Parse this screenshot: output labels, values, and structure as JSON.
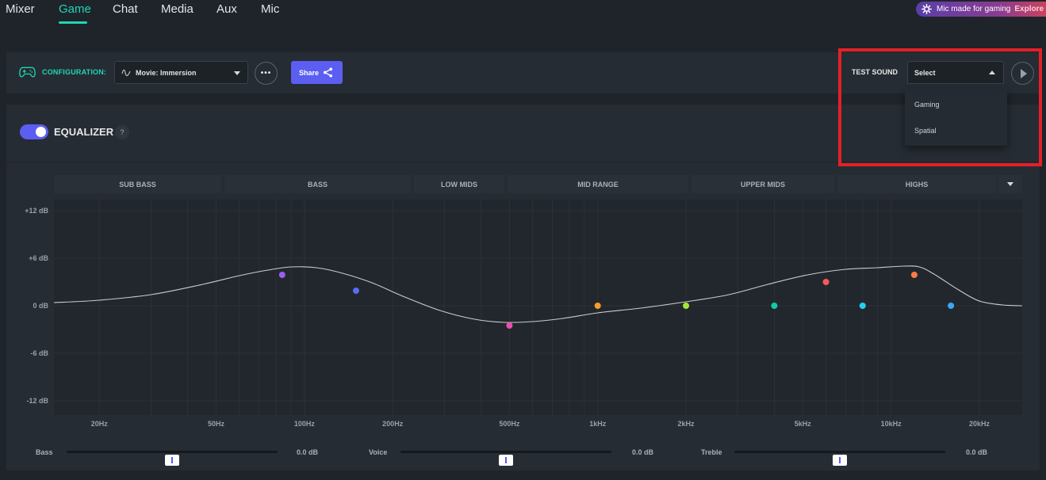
{
  "nav": {
    "tabs": [
      {
        "label": "Mixer",
        "active": false
      },
      {
        "label": "Game",
        "active": true
      },
      {
        "label": "Chat",
        "active": false
      },
      {
        "label": "Media",
        "active": false
      },
      {
        "label": "Aux",
        "active": false
      },
      {
        "label": "Mic",
        "active": false
      }
    ],
    "promo": {
      "text": "Mic made for gaming",
      "link": "Explore",
      "icon": "steelseries-logo-icon"
    }
  },
  "config": {
    "label": "CONFIGURATION:",
    "selected": "Movie: Immersion",
    "more_label": "•••",
    "share_label": "Share",
    "icons": {
      "gamepad": "gamepad-icon",
      "wave": "waveform-icon",
      "share": "share-icon",
      "play": "play-icon"
    }
  },
  "test_sound": {
    "label": "TEST SOUND",
    "selected": "Select",
    "options": [
      "Gaming",
      "Spatial"
    ],
    "expanded": true
  },
  "equalizer": {
    "title": "EQUALIZER",
    "enabled": true,
    "help": "?",
    "bands": [
      "SUB BASS",
      "BASS",
      "LOW MIDS",
      "MID RANGE",
      "UPPER MIDS",
      "HIGHS"
    ]
  },
  "chart_data": {
    "type": "line",
    "x_scale": "log",
    "x_range_hz": [
      14,
      28000
    ],
    "ylim": [
      -12,
      12
    ],
    "y_ticks": [
      12,
      6,
      0,
      -6,
      -12
    ],
    "y_tick_labels": [
      "+12 dB",
      "+6 dB",
      "0 dB",
      "-6 dB",
      "-12 dB"
    ],
    "x_ticks": [
      20,
      50,
      100,
      200,
      500,
      1000,
      2000,
      5000,
      10000,
      20000
    ],
    "x_tick_labels": [
      "20Hz",
      "50Hz",
      "100Hz",
      "200Hz",
      "500Hz",
      "1kHz",
      "2kHz",
      "5kHz",
      "10kHz",
      "20kHz"
    ],
    "curve": [
      [
        14,
        0.4
      ],
      [
        20,
        0.7
      ],
      [
        30,
        1.4
      ],
      [
        45,
        2.7
      ],
      [
        60,
        3.8
      ],
      [
        75,
        4.5
      ],
      [
        90,
        4.9
      ],
      [
        110,
        4.8
      ],
      [
        135,
        4.1
      ],
      [
        170,
        2.9
      ],
      [
        220,
        1.1
      ],
      [
        290,
        -0.6
      ],
      [
        380,
        -1.7
      ],
      [
        480,
        -2.1
      ],
      [
        600,
        -2.0
      ],
      [
        760,
        -1.6
      ],
      [
        1000,
        -0.9
      ],
      [
        1400,
        -0.3
      ],
      [
        2000,
        0.5
      ],
      [
        2800,
        1.4
      ],
      [
        3800,
        2.7
      ],
      [
        5200,
        3.9
      ],
      [
        7000,
        4.6
      ],
      [
        9000,
        4.8
      ],
      [
        11000,
        5.0
      ],
      [
        12500,
        4.9
      ],
      [
        14000,
        4.0
      ],
      [
        17000,
        2.0
      ],
      [
        20000,
        0.6
      ],
      [
        24000,
        0.1
      ],
      [
        28000,
        0.0
      ]
    ],
    "points": [
      {
        "hz": 84,
        "db": 3.9,
        "color": "#9b5cf6"
      },
      {
        "hz": 150,
        "db": 1.9,
        "color": "#5b6cf0"
      },
      {
        "hz": 500,
        "db": -2.5,
        "color": "#ec4fb0"
      },
      {
        "hz": 1000,
        "db": 0.0,
        "color": "#f59e2a"
      },
      {
        "hz": 2000,
        "db": 0.0,
        "color": "#a3e635"
      },
      {
        "hz": 4000,
        "db": 0.0,
        "color": "#14c8a8"
      },
      {
        "hz": 6000,
        "db": 3.0,
        "color": "#f25c54"
      },
      {
        "hz": 8000,
        "db": 0.0,
        "color": "#22d3ee"
      },
      {
        "hz": 12000,
        "db": 3.9,
        "color": "#fb7a4a"
      },
      {
        "hz": 16000,
        "db": 0.0,
        "color": "#38a8f5"
      }
    ]
  },
  "sliders": [
    {
      "label": "Bass",
      "value": "0.0 dB",
      "level": 0.5
    },
    {
      "label": "Voice",
      "value": "0.0 dB",
      "level": 0.5
    },
    {
      "label": "Treble",
      "value": "0.0 dB",
      "level": 0.5
    }
  ]
}
